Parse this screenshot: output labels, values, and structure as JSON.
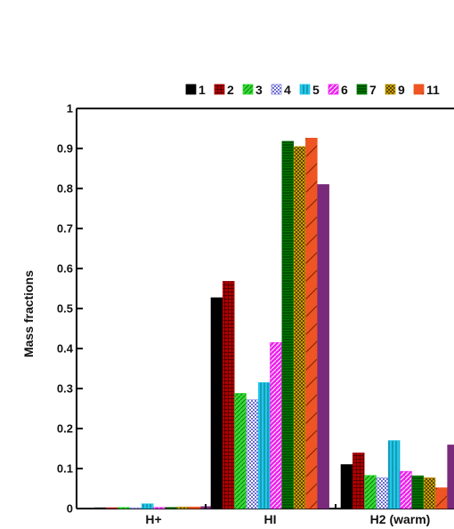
{
  "chart_data": {
    "type": "bar",
    "ylabel": "Mass fractions",
    "xlabel": "",
    "ylim": [
      0,
      1
    ],
    "yticks": [
      "0",
      "0.1",
      "0.2",
      "0.3",
      "0.4",
      "0.5",
      "0.6",
      "0.7",
      "0.8",
      "0.9",
      "1"
    ],
    "categories": [
      "H+",
      "HI",
      "H2 (warm)"
    ],
    "legend_position": "top",
    "series": [
      {
        "name": "1",
        "color": "#000000",
        "pattern": "solid",
        "values": [
          0.002,
          0.527,
          0.11
        ]
      },
      {
        "name": "2",
        "color": "#b00000",
        "pattern": "grid",
        "values": [
          0.002,
          0.568,
          0.139
        ]
      },
      {
        "name": "3",
        "color": "#33dd33",
        "pattern": "diag",
        "values": [
          0.003,
          0.288,
          0.083
        ]
      },
      {
        "name": "4",
        "color": "#8a8ae0",
        "pattern": "checker",
        "values": [
          0.002,
          0.272,
          0.077
        ]
      },
      {
        "name": "5",
        "color": "#22c8e8",
        "pattern": "vertical",
        "values": [
          0.012,
          0.315,
          0.17
        ]
      },
      {
        "name": "6",
        "color": "#ee22ee",
        "pattern": "diag",
        "values": [
          0.003,
          0.415,
          0.093
        ]
      },
      {
        "name": "7",
        "color": "#007a00",
        "pattern": "horizontal",
        "values": [
          0.003,
          0.918,
          0.082
        ]
      },
      {
        "name": "9",
        "color": "#c8a000",
        "pattern": "checker",
        "values": [
          0.004,
          0.905,
          0.077
        ]
      },
      {
        "name": "11",
        "color": "#ee5522",
        "pattern": "slash",
        "values": [
          0.004,
          0.926,
          0.052
        ]
      },
      {
        "name": "",
        "color": "#7a2a7a",
        "pattern": "solid",
        "values": [
          0.005,
          0.81,
          0.159
        ]
      }
    ]
  }
}
